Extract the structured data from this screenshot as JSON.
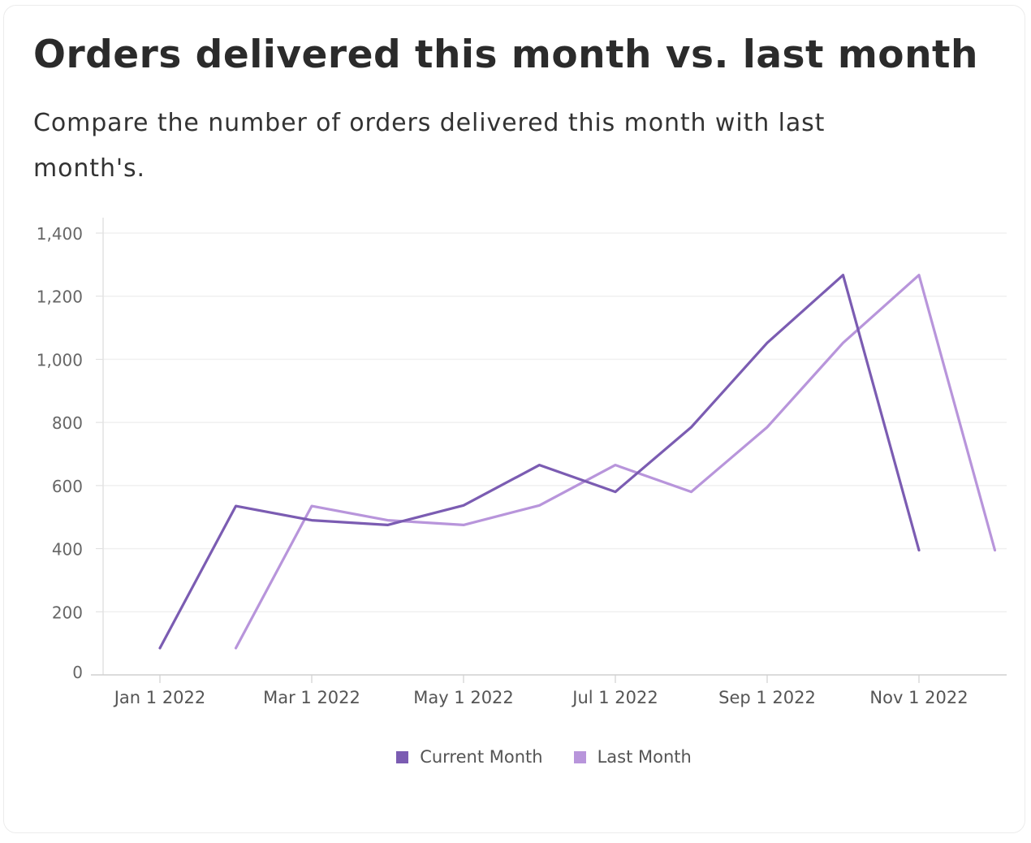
{
  "header": {
    "title": "Orders delivered this month vs. last month",
    "subtitle": "Compare the number of orders delivered this month with last month's."
  },
  "chart_data": {
    "type": "line",
    "title": "",
    "xlabel": "",
    "ylabel": "",
    "x": [
      "2022-01-01",
      "2022-02-01",
      "2022-03-01",
      "2022-04-01",
      "2022-05-01",
      "2022-06-01",
      "2022-07-01",
      "2022-08-01",
      "2022-09-01",
      "2022-10-01",
      "2022-11-01",
      "2022-12-01"
    ],
    "x_tick_labels": [
      "Jan 1 2022",
      "Mar 1 2022",
      "May 1 2022",
      "Jul 1 2022",
      "Sep 1 2022",
      "Nov 1 2022"
    ],
    "y_ticks": [
      0,
      200,
      400,
      600,
      800,
      1000,
      1200,
      1400
    ],
    "y_tick_labels": [
      "0",
      "200",
      "400",
      "600",
      "800",
      "1,000",
      "1,200",
      "1,400"
    ],
    "ylim": [
      0,
      1450
    ],
    "grid": true,
    "legend_position": "bottom",
    "series": [
      {
        "name": "Current Month",
        "color": "#7b5cb2",
        "points": [
          {
            "x": "2022-01-01",
            "y": 85
          },
          {
            "x": "2022-02-01",
            "y": 535
          },
          {
            "x": "2022-03-01",
            "y": 490
          },
          {
            "x": "2022-04-01",
            "y": 475
          },
          {
            "x": "2022-05-01",
            "y": 537
          },
          {
            "x": "2022-06-01",
            "y": 665
          },
          {
            "x": "2022-07-01",
            "y": 580
          },
          {
            "x": "2022-08-01",
            "y": 785
          },
          {
            "x": "2022-09-01",
            "y": 1052
          },
          {
            "x": "2022-10-01",
            "y": 1267
          },
          {
            "x": "2022-11-01",
            "y": 395
          }
        ]
      },
      {
        "name": "Last Month",
        "color": "#b895db",
        "points": [
          {
            "x": "2022-02-01",
            "y": 85
          },
          {
            "x": "2022-03-01",
            "y": 535
          },
          {
            "x": "2022-04-01",
            "y": 490
          },
          {
            "x": "2022-05-01",
            "y": 475
          },
          {
            "x": "2022-06-01",
            "y": 537
          },
          {
            "x": "2022-07-01",
            "y": 665
          },
          {
            "x": "2022-08-01",
            "y": 580
          },
          {
            "x": "2022-09-01",
            "y": 785
          },
          {
            "x": "2022-10-01",
            "y": 1052
          },
          {
            "x": "2022-11-01",
            "y": 1267
          },
          {
            "x": "2022-12-01",
            "y": 395
          }
        ]
      }
    ]
  }
}
